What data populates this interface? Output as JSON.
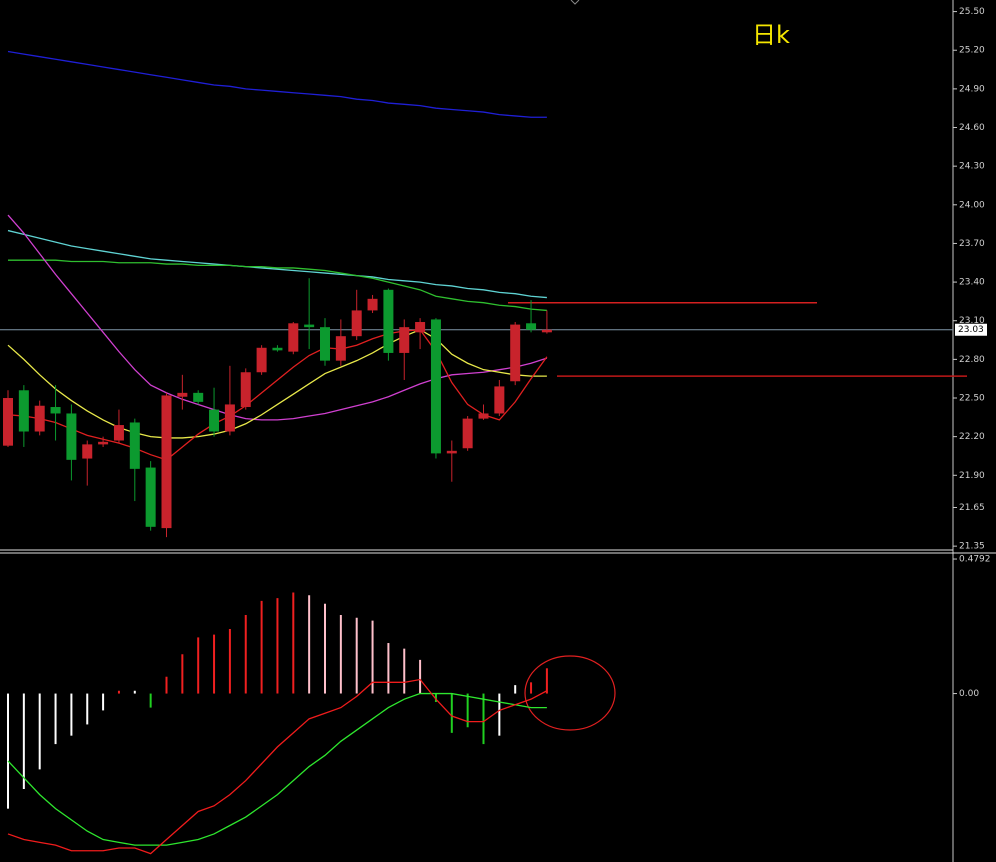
{
  "chart_data": [
    {
      "type": "candlestick",
      "title": "日k",
      "open": [
        22.13,
        22.56,
        22.24,
        22.43,
        22.38,
        22.03,
        22.14,
        22.17,
        22.31,
        21.96,
        21.49,
        22.51,
        22.54,
        22.41,
        22.24,
        22.43,
        22.7,
        22.89,
        22.86,
        23.07,
        23.05,
        22.79,
        22.98,
        23.18,
        23.34,
        22.85,
        23.01,
        23.11,
        22.07,
        22.11,
        22.34,
        22.38,
        22.63,
        23.08,
        23.01
      ],
      "high": [
        22.56,
        22.6,
        22.48,
        22.6,
        22.45,
        22.17,
        22.2,
        22.41,
        22.34,
        22.01,
        22.54,
        22.68,
        22.56,
        22.58,
        22.75,
        22.73,
        22.91,
        22.91,
        23.09,
        23.43,
        23.12,
        23.11,
        23.34,
        23.3,
        23.35,
        23.11,
        23.12,
        23.12,
        22.17,
        22.36,
        22.45,
        22.64,
        23.09,
        23.26,
        23.18
      ],
      "low": [
        22.12,
        22.12,
        22.21,
        22.17,
        21.86,
        21.82,
        22.12,
        22.15,
        21.7,
        21.47,
        21.42,
        22.41,
        22.45,
        22.2,
        22.21,
        22.41,
        22.68,
        22.86,
        22.84,
        22.88,
        22.75,
        22.75,
        22.95,
        23.16,
        22.79,
        22.64,
        22.88,
        22.03,
        21.85,
        22.09,
        22.33,
        22.36,
        22.6,
        23.01,
        23.0
      ],
      "close": [
        22.5,
        22.24,
        22.44,
        22.38,
        22.02,
        22.14,
        22.16,
        22.29,
        21.95,
        21.5,
        22.52,
        22.54,
        22.47,
        22.24,
        22.45,
        22.7,
        22.89,
        22.87,
        23.08,
        23.05,
        22.79,
        22.98,
        23.18,
        23.27,
        22.85,
        23.05,
        23.09,
        22.07,
        22.09,
        22.34,
        22.38,
        22.59,
        23.07,
        23.03,
        23.03
      ],
      "up_color": "#c8232c",
      "down_color": "#0c9a2f",
      "ma_lines": [
        {
          "color": "#1f1fd6",
          "values": [
            25.19,
            25.17,
            25.15,
            25.13,
            25.11,
            25.09,
            25.07,
            25.05,
            25.03,
            25.01,
            24.99,
            24.97,
            24.95,
            24.93,
            24.92,
            24.9,
            24.89,
            24.88,
            24.87,
            24.86,
            24.85,
            24.84,
            24.82,
            24.81,
            24.79,
            24.78,
            24.77,
            24.75,
            24.74,
            24.73,
            24.72,
            24.7,
            24.69,
            24.68,
            24.68
          ]
        },
        {
          "color": "#5fd3d3",
          "values": [
            23.8,
            23.77,
            23.74,
            23.71,
            23.68,
            23.66,
            23.64,
            23.62,
            23.6,
            23.58,
            23.57,
            23.56,
            23.55,
            23.54,
            23.53,
            23.52,
            23.51,
            23.5,
            23.49,
            23.48,
            23.47,
            23.46,
            23.45,
            23.44,
            23.42,
            23.41,
            23.4,
            23.38,
            23.37,
            23.35,
            23.34,
            23.32,
            23.31,
            23.29,
            23.28
          ]
        },
        {
          "color": "#2fbf2f",
          "values": [
            23.57,
            23.57,
            23.57,
            23.57,
            23.56,
            23.56,
            23.56,
            23.55,
            23.55,
            23.55,
            23.54,
            23.54,
            23.53,
            23.53,
            23.53,
            23.52,
            23.52,
            23.51,
            23.51,
            23.5,
            23.49,
            23.47,
            23.45,
            23.43,
            23.4,
            23.37,
            23.34,
            23.29,
            23.27,
            23.25,
            23.24,
            23.22,
            23.21,
            23.19,
            23.18
          ]
        },
        {
          "color": "#d040d0",
          "values": [
            23.92,
            23.78,
            23.62,
            23.46,
            23.31,
            23.16,
            23.01,
            22.86,
            22.72,
            22.6,
            22.54,
            22.49,
            22.45,
            22.41,
            22.37,
            22.34,
            22.33,
            22.33,
            22.34,
            22.36,
            22.38,
            22.41,
            22.44,
            22.47,
            22.51,
            22.56,
            22.61,
            22.65,
            22.68,
            22.69,
            22.7,
            22.72,
            22.74,
            22.77,
            22.81
          ]
        },
        {
          "color": "#e8e84a",
          "values": [
            22.91,
            22.8,
            22.68,
            22.57,
            22.48,
            22.4,
            22.33,
            22.27,
            22.23,
            22.2,
            22.19,
            22.19,
            22.2,
            22.22,
            22.25,
            22.3,
            22.37,
            22.45,
            22.53,
            22.61,
            22.69,
            22.74,
            22.79,
            22.85,
            22.92,
            22.98,
            23.03,
            22.96,
            22.84,
            22.77,
            22.72,
            22.7,
            22.68,
            22.67,
            22.67
          ]
        },
        {
          "color": "#e02020",
          "values": [
            22.37,
            22.36,
            22.34,
            22.31,
            22.26,
            22.21,
            22.18,
            22.15,
            22.11,
            22.06,
            22.02,
            22.12,
            22.22,
            22.3,
            22.36,
            22.44,
            22.54,
            22.64,
            22.74,
            22.83,
            22.89,
            22.88,
            22.91,
            22.96,
            23.0,
            23.02,
            23.03,
            22.86,
            22.62,
            22.45,
            22.37,
            22.33,
            22.47,
            22.65,
            22.82
          ]
        }
      ],
      "levels": [
        {
          "value": 23.24,
          "color": "#d42020"
        },
        {
          "value": 22.67,
          "color": "#c01818"
        }
      ],
      "last_price": {
        "value": 23.03,
        "label": "23.03"
      },
      "last_line_color": "#7f95a8",
      "ylim": [
        21.32,
        25.59
      ],
      "yticks": [
        {
          "value": 25.5,
          "label": "25.50"
        },
        {
          "value": 25.2,
          "label": "25.20"
        },
        {
          "value": 24.9,
          "label": "24.90"
        },
        {
          "value": 24.6,
          "label": "24.60"
        },
        {
          "value": 24.3,
          "label": "24.30"
        },
        {
          "value": 24,
          "label": "24.00"
        },
        {
          "value": 23.7,
          "label": "23.70"
        },
        {
          "value": 23.4,
          "label": "23.40"
        },
        {
          "value": 23.1,
          "label": "23.10"
        },
        {
          "value": 22.8,
          "label": "22.80"
        },
        {
          "value": 22.5,
          "label": "22.50"
        },
        {
          "value": 22.2,
          "label": "22.20"
        },
        {
          "value": 21.9,
          "label": "21.90"
        },
        21.65,
        21.35
      ]
    },
    {
      "type": "macd",
      "histogram": [
        -0.41,
        -0.34,
        -0.27,
        -0.18,
        -0.15,
        -0.11,
        -0.06,
        0.01,
        0.01,
        -0.05,
        0.06,
        0.14,
        0.2,
        0.21,
        0.23,
        0.28,
        0.33,
        0.34,
        0.36,
        0.35,
        0.32,
        0.28,
        0.27,
        0.26,
        0.18,
        0.16,
        0.12,
        -0.03,
        -0.14,
        -0.12,
        -0.18,
        -0.15,
        0.03,
        0.04,
        0.09
      ],
      "histogram_colors": [
        "#fff",
        "#fff",
        "#fff",
        "#fff",
        "#fff",
        "#fff",
        "#fff",
        "#f02020",
        "#fff",
        "#20d020",
        "#f02020",
        "#f02020",
        "#f02020",
        "#f02020",
        "#f02020",
        "#f02020",
        "#f02020",
        "#f02020",
        "#f02020",
        "#ffc0cb",
        "#ffc0cb",
        "#ffc0cb",
        "#ffc0cb",
        "#ffc0cb",
        "#ffc0cb",
        "#ffc0cb",
        "#ffc0cb",
        "#20d020",
        "#20d020",
        "#20d020",
        "#20d020",
        "#fff",
        "#fff",
        "#f02020",
        "#f02020"
      ],
      "dif": {
        "color": "#f01c1c",
        "values": [
          -0.5,
          -0.52,
          -0.53,
          -0.54,
          -0.56,
          -0.56,
          -0.56,
          -0.55,
          -0.55,
          -0.57,
          -0.52,
          -0.47,
          -0.42,
          -0.4,
          -0.36,
          -0.31,
          -0.25,
          -0.19,
          -0.14,
          -0.09,
          -0.07,
          -0.05,
          -0.01,
          0.04,
          0.04,
          0.04,
          0.05,
          -0.02,
          -0.08,
          -0.1,
          -0.1,
          -0.06,
          -0.04,
          -0.02,
          0.01
        ]
      },
      "dea": {
        "color": "#2ee62e",
        "values": [
          -0.24,
          -0.3,
          -0.36,
          -0.41,
          -0.45,
          -0.49,
          -0.52,
          -0.53,
          -0.54,
          -0.54,
          -0.54,
          -0.53,
          -0.52,
          -0.5,
          -0.47,
          -0.44,
          -0.4,
          -0.36,
          -0.31,
          -0.26,
          -0.22,
          -0.17,
          -0.13,
          -0.09,
          -0.05,
          -0.02,
          0.0,
          0.0,
          0.0,
          -0.01,
          -0.02,
          -0.03,
          -0.04,
          -0.05,
          -0.05
        ]
      },
      "ylim": [
        -0.6,
        0.49
      ],
      "yticks": [
        0.4792,
        {
          "value": 0,
          "label": "0.00"
        }
      ]
    }
  ]
}
